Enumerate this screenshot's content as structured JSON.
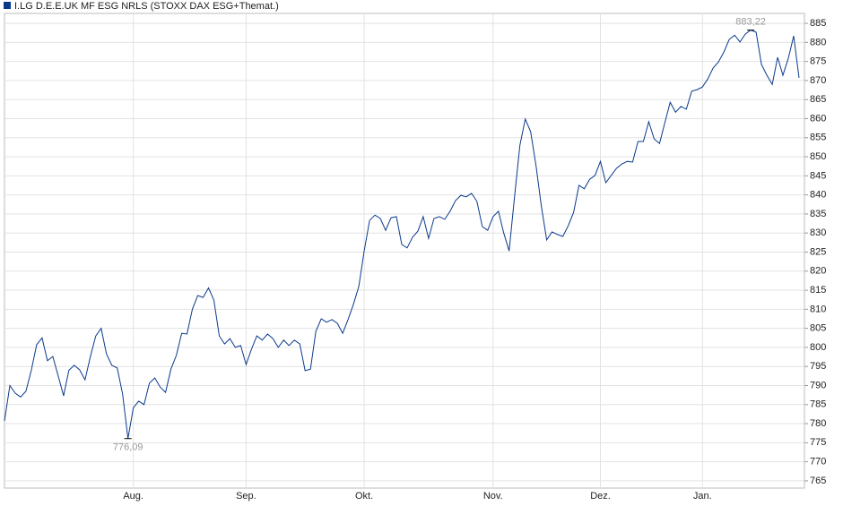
{
  "chart_data": {
    "type": "line",
    "series": [
      {
        "name": "I.LG D.E.E.UK MF ESG NRLS (STOXX DAX ESG+Themat.)",
        "color": "#0b3a8c",
        "values": [
          780.7,
          790,
          788,
          787,
          788.5,
          794,
          800.7,
          802.5,
          796.5,
          797.6,
          792.5,
          787.3,
          794,
          795.3,
          794.1,
          791.5,
          797.6,
          803,
          805,
          798.3,
          795.3,
          794.6,
          787.8,
          776.09,
          784.2,
          785.9,
          785,
          790.6,
          792,
          789.6,
          788.2,
          794.3,
          797.9,
          803.7,
          803.5,
          810,
          813.6,
          813.1,
          815.6,
          812.4,
          803,
          800.9,
          802.3,
          800,
          800.5,
          795.5,
          799.5,
          803,
          801.9,
          803.5,
          802.3,
          800,
          801.9,
          800.5,
          801.9,
          800.9,
          793.9,
          794.3,
          804.2,
          807.5,
          806.6,
          807.3,
          806.3,
          803.7,
          807.3,
          811.3,
          816,
          825.3,
          833.3,
          834.7,
          833.8,
          830.7,
          834,
          834.3,
          827,
          826.1,
          828.9,
          830.5,
          834.3,
          828.6,
          833.8,
          834.3,
          833.6,
          835.7,
          838.5,
          839.9,
          839.5,
          840.4,
          838.3,
          831.7,
          830.7,
          834.3,
          835.7,
          830,
          825.3,
          839.4,
          853,
          859.9,
          856.6,
          847.7,
          837.1,
          828.2,
          830.3,
          829.6,
          829.1,
          831.9,
          835.4,
          842.5,
          841.6,
          844.1,
          845.1,
          848.8,
          843.2,
          845.1,
          847,
          848.1,
          848.8,
          848.6,
          854,
          854,
          859.2,
          854.7,
          853.5,
          858.9,
          864.3,
          861.7,
          863.2,
          862.5,
          867.2,
          867.6,
          868.3,
          870.4,
          873.3,
          874.9,
          877.5,
          880.8,
          881.9,
          880.1,
          882.2,
          883.22,
          882.7,
          874.2,
          871.4,
          869,
          876.1,
          871.4,
          875.8,
          881.7,
          870.7
        ],
        "value_labels": [
          null,
          null,
          null,
          null,
          null,
          null,
          null,
          null,
          null,
          null,
          null,
          null,
          null,
          null,
          null,
          null,
          null,
          null,
          null,
          null,
          null,
          null,
          null,
          "776,09",
          null,
          null,
          null,
          null,
          null,
          null,
          null,
          null,
          null,
          null,
          null,
          null,
          null,
          null,
          null,
          null,
          null,
          null,
          null,
          null,
          null,
          null,
          null,
          null,
          null,
          null,
          null,
          null,
          null,
          null,
          null,
          null,
          null,
          null,
          null,
          null,
          null,
          null,
          null,
          null,
          null,
          null,
          null,
          null,
          null,
          null,
          null,
          null,
          null,
          null,
          null,
          null,
          null,
          null,
          null,
          null,
          null,
          null,
          null,
          null,
          null,
          null,
          null,
          null,
          null,
          null,
          null,
          null,
          null,
          null,
          null,
          null,
          null,
          null,
          null,
          null,
          null,
          null,
          null,
          null,
          null,
          null,
          null,
          null,
          null,
          null,
          null,
          null,
          null,
          null,
          null,
          null,
          null,
          null,
          null,
          null,
          null,
          null,
          null,
          null,
          null,
          null,
          null,
          null,
          null,
          null,
          null,
          null,
          null,
          null,
          null,
          null,
          null,
          null,
          null,
          "883,22",
          null,
          null,
          null,
          null,
          null,
          null,
          null,
          null,
          null
        ]
      }
    ],
    "categories": [
      null,
      null,
      null,
      null,
      null,
      null,
      null,
      null,
      null,
      null,
      null,
      null,
      null,
      null,
      null,
      null,
      null,
      null,
      null,
      null,
      null,
      null,
      null,
      null,
      "Aug.",
      null,
      null,
      null,
      null,
      null,
      null,
      null,
      null,
      null,
      null,
      null,
      null,
      null,
      null,
      null,
      null,
      null,
      null,
      null,
      null,
      "Sep.",
      null,
      null,
      null,
      null,
      null,
      null,
      null,
      null,
      null,
      null,
      null,
      null,
      null,
      null,
      null,
      null,
      null,
      null,
      null,
      null,
      null,
      "Okt.",
      null,
      null,
      null,
      null,
      null,
      null,
      null,
      null,
      null,
      null,
      null,
      null,
      null,
      null,
      null,
      null,
      null,
      null,
      null,
      null,
      null,
      null,
      null,
      "Nov.",
      null,
      null,
      null,
      null,
      null,
      null,
      null,
      null,
      null,
      null,
      null,
      null,
      null,
      null,
      null,
      null,
      null,
      null,
      null,
      "Dez.",
      null,
      null,
      null,
      null,
      null,
      null,
      null,
      null,
      null,
      null,
      null,
      null,
      null,
      null,
      null,
      null,
      null,
      null,
      "Jan.",
      null,
      null,
      null,
      null,
      null,
      null,
      null,
      null,
      null,
      null,
      null,
      null,
      null,
      null,
      null,
      null,
      null,
      null
    ],
    "ylim": [
      763.1,
      887.6
    ],
    "yticks": [
      765,
      770,
      775,
      780,
      785,
      790,
      795,
      800,
      805,
      810,
      815,
      820,
      825,
      830,
      835,
      840,
      845,
      850,
      855,
      860,
      865,
      870,
      875,
      880,
      885
    ],
    "grid": true
  }
}
